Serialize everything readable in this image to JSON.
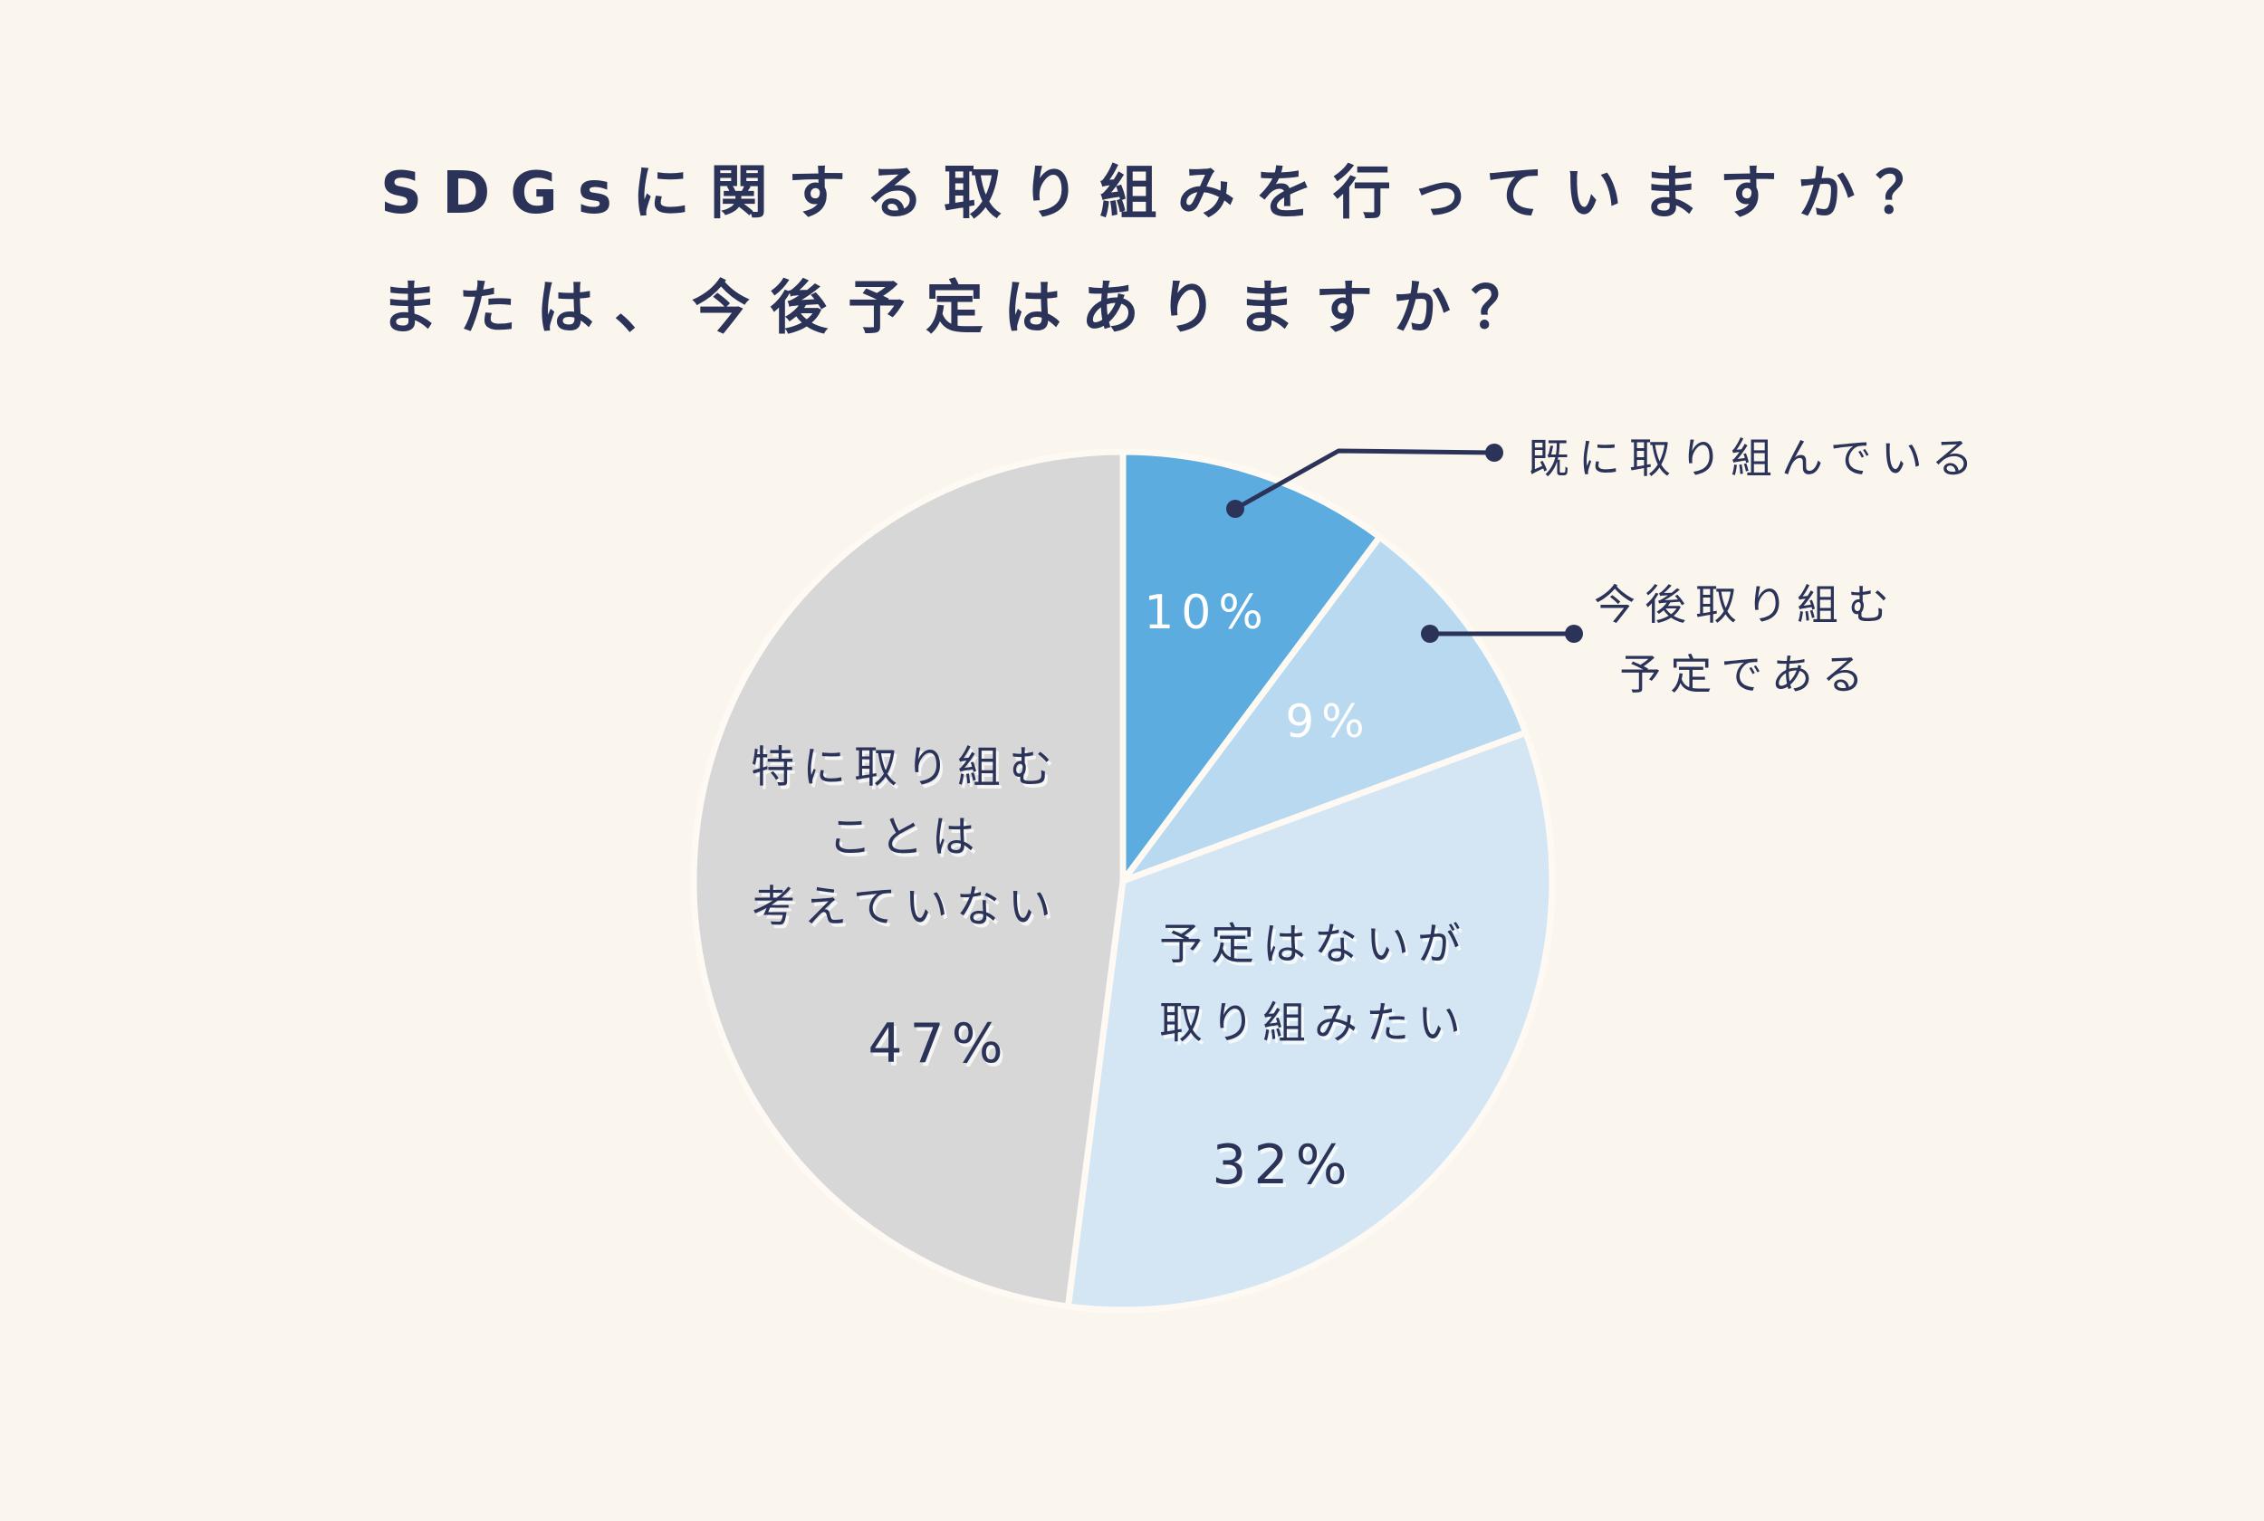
{
  "background_color": "#FBF6ED",
  "text_color": "#2B3359",
  "title": {
    "line1": "SDGsに関する取り組みを行っていますか？",
    "line2": "または、今後予定はありますか？"
  },
  "chart_data": {
    "type": "pie",
    "title": "SDGsに関する取り組みを行っていますか？または、今後予定はありますか？",
    "unit": "%",
    "start_angle": "12-o-clock",
    "direction": "clockwise",
    "values_sum_shown": 98,
    "grid": false,
    "legend_position": "callouts-right-and-inside",
    "segments": [
      {
        "label": "既に取り組んでいる",
        "label_lines": [
          "既に取り組んでいる"
        ],
        "value": 10,
        "pct_label": "10%",
        "color": "#5CACDF",
        "pct_text_color": "#FFFFFF",
        "label_style": "callout"
      },
      {
        "label": "今後取り組む予定である",
        "label_lines": [
          "今後取り組む",
          "予定である"
        ],
        "value": 9,
        "pct_label": "9%",
        "color": "#B9D9F1",
        "pct_text_color": "#FFFFFF",
        "label_style": "callout"
      },
      {
        "label": "予定はないが取り組みたい",
        "label_lines": [
          "予定はないが",
          "取り組みたい"
        ],
        "value": 32,
        "pct_label": "32%",
        "color": "#D4E6F4",
        "pct_text_color": "#2B3359",
        "label_style": "inside"
      },
      {
        "label": "特に取り組むことは考えていない",
        "label_lines": [
          "特に取り組む",
          "ことは",
          "考えていない"
        ],
        "value": 47,
        "pct_label": "47%",
        "color": "#D7D7D8",
        "pct_text_color": "#2B3359",
        "label_style": "inside"
      }
    ]
  }
}
